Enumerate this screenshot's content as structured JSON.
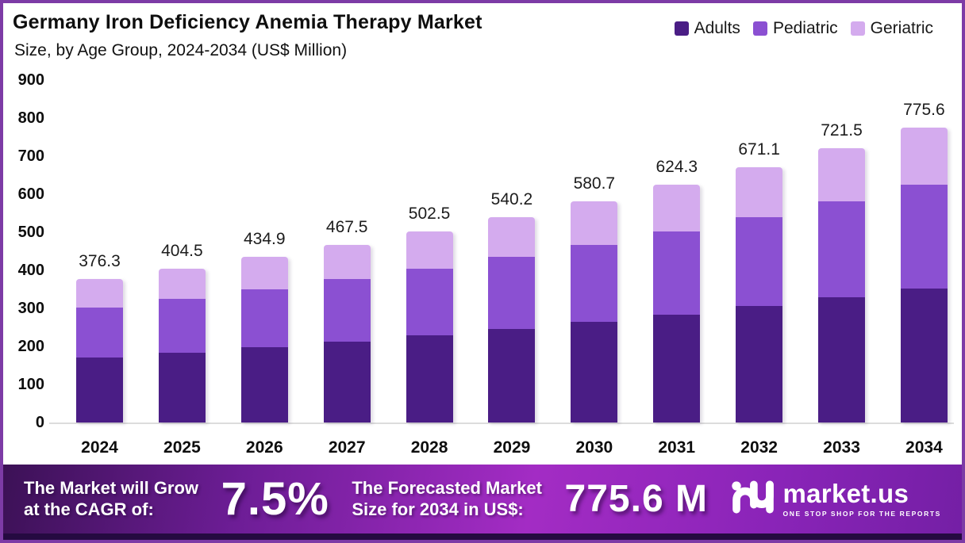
{
  "title": "Germany Iron Deficiency Anemia Therapy Market",
  "subtitle": "Size, by Age Group, 2024-2034 (US$ Million)",
  "colors": {
    "adults": "#4a1d85",
    "pediatric": "#8b50d2",
    "geriatric": "#d4abee",
    "frame_border": "#7d3ba6",
    "axis_line": "#dcdcdc"
  },
  "legend": [
    {
      "label": "Adults",
      "color": "#4a1d85"
    },
    {
      "label": "Pediatric",
      "color": "#8b50d2"
    },
    {
      "label": "Geriatric",
      "color": "#d4abee"
    }
  ],
  "chart_data": {
    "type": "bar",
    "stacked": true,
    "title": "Germany Iron Deficiency Anemia Therapy Market Size, by Age Group, 2024-2034 (US$ Million)",
    "categories": [
      "2024",
      "2025",
      "2026",
      "2027",
      "2028",
      "2029",
      "2030",
      "2031",
      "2032",
      "2033",
      "2034"
    ],
    "totals": [
      376.3,
      404.5,
      434.9,
      467.5,
      502.5,
      540.2,
      580.7,
      624.3,
      671.1,
      721.5,
      775.6
    ],
    "series": [
      {
        "name": "Adults",
        "color": "#4a1d85",
        "values": [
          171.2,
          184.0,
          197.9,
          212.7,
          228.6,
          245.8,
          264.2,
          284.1,
          305.4,
          328.3,
          352.9
        ]
      },
      {
        "name": "Pediatric",
        "color": "#8b50d2",
        "values": [
          131.7,
          141.6,
          152.2,
          163.6,
          175.9,
          189.1,
          203.2,
          218.5,
          234.9,
          252.5,
          271.5
        ]
      },
      {
        "name": "Geriatric",
        "color": "#d4abee",
        "values": [
          73.4,
          78.9,
          84.8,
          91.2,
          98.0,
          105.3,
          113.3,
          121.7,
          130.8,
          140.7,
          151.2
        ]
      }
    ],
    "xlabel": "",
    "ylabel": "",
    "ylim": [
      0,
      900
    ],
    "yticks": [
      0,
      100,
      200,
      300,
      400,
      500,
      600,
      700,
      800,
      900
    ],
    "grid": false,
    "legend_position": "top-right",
    "value_label_decimals": 1
  },
  "banner": {
    "cagr_label": [
      "The Market will Grow",
      "at the CAGR of:"
    ],
    "cagr_value": "7.5%",
    "forecast_label": [
      "The Forecasted Market",
      "Size for 2034 in US$:"
    ],
    "forecast_value": "775.6 M",
    "brand": "market.us",
    "tagline": "ONE STOP SHOP FOR THE REPORTS",
    "bg_gradient": [
      "#3c1156",
      "#6d1d96",
      "#a32cc4",
      "#8a24b8",
      "#741fa5"
    ]
  }
}
